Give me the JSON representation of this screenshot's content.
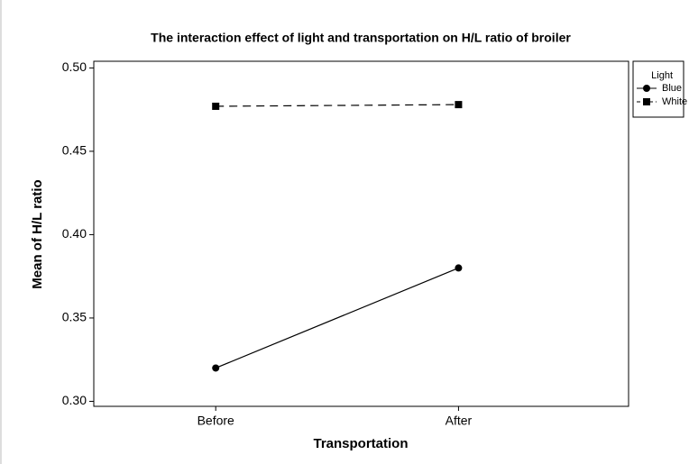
{
  "chart_data": {
    "type": "line",
    "title": "The interaction effect of light and transportation on H/L ratio of broiler",
    "xlabel": "Transportation",
    "ylabel": "Mean of H/L ratio",
    "categories": [
      "Before",
      "After"
    ],
    "legend_title": "Light",
    "legend": "right",
    "series": [
      {
        "name": "Blue",
        "color": "#000000",
        "marker": "circle",
        "dash": "solid",
        "values": [
          0.32,
          0.38
        ]
      },
      {
        "name": "White",
        "color": "#000000",
        "marker": "square",
        "dash": "dashed",
        "values": [
          0.477,
          0.478
        ]
      }
    ],
    "ylim": [
      0.297,
      0.504
    ],
    "yticks": [
      {
        "value": 0.3,
        "label": "0.30"
      },
      0.35,
      {
        "value": 0.4,
        "label": "0.40"
      },
      0.45,
      {
        "value": 0.5,
        "label": "0.50"
      }
    ]
  }
}
